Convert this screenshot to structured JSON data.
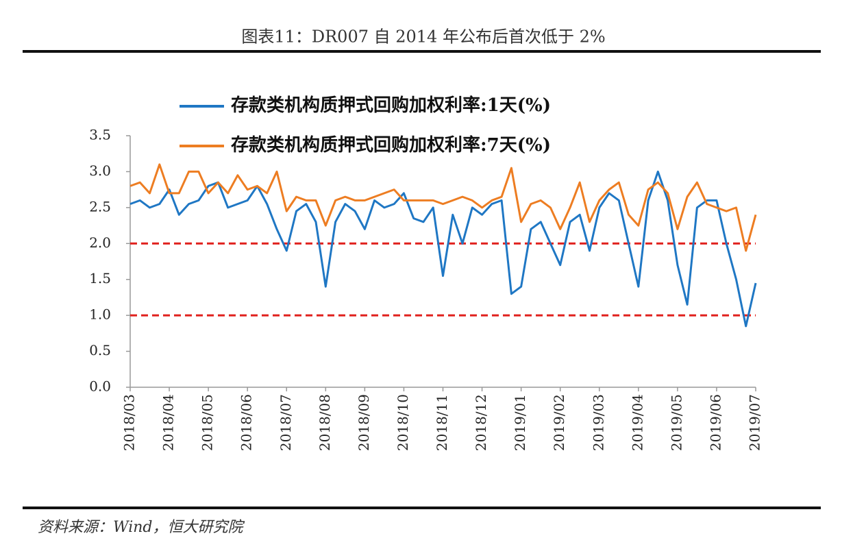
{
  "chart_data": {
    "type": "line",
    "title": "图表11：DR007 自 2014 年公布后首次低于 2%",
    "source": "资料来源：Wind，恒大研究院",
    "categories": [
      "2018/03",
      null,
      null,
      null,
      "2018/04",
      null,
      null,
      null,
      "2018/05",
      null,
      null,
      null,
      "2018/06",
      null,
      null,
      null,
      "2018/07",
      null,
      null,
      null,
      "2018/08",
      null,
      null,
      null,
      "2018/09",
      null,
      null,
      null,
      "2018/10",
      null,
      null,
      null,
      "2018/11",
      null,
      null,
      null,
      "2018/12",
      null,
      null,
      null,
      "2019/01",
      null,
      null,
      null,
      "2019/02",
      null,
      null,
      null,
      "2019/03",
      null,
      null,
      null,
      "2019/04",
      null,
      null,
      null,
      "2019/05",
      null,
      null,
      null,
      "2019/06",
      null,
      null,
      null,
      "2019/07"
    ],
    "series": [
      {
        "name": "存款类机构质押式回购加权利率:1天(%)",
        "color": "#1f77c4",
        "values": [
          2.55,
          2.6,
          2.5,
          2.55,
          2.75,
          2.4,
          2.55,
          2.6,
          2.8,
          2.85,
          2.5,
          2.55,
          2.6,
          2.8,
          2.55,
          2.2,
          1.9,
          2.45,
          2.55,
          2.3,
          1.4,
          2.3,
          2.55,
          2.45,
          2.2,
          2.6,
          2.5,
          2.55,
          2.7,
          2.35,
          2.3,
          2.5,
          1.55,
          2.4,
          2.0,
          2.5,
          2.4,
          2.55,
          2.6,
          1.3,
          1.4,
          2.2,
          2.3,
          2.0,
          1.7,
          2.3,
          2.4,
          1.9,
          2.5,
          2.7,
          2.6,
          2.0,
          1.4,
          2.6,
          3.0,
          2.6,
          1.7,
          1.15,
          2.5,
          2.6,
          2.6,
          2.0,
          1.5,
          0.85,
          1.45
        ]
      },
      {
        "name": "存款类机构质押式回购加权利率:7天(%)",
        "color": "#ed7d22",
        "values": [
          2.8,
          2.85,
          2.7,
          3.1,
          2.7,
          2.7,
          3.0,
          3.0,
          2.7,
          2.85,
          2.7,
          2.95,
          2.75,
          2.8,
          2.7,
          3.0,
          2.45,
          2.65,
          2.6,
          2.6,
          2.25,
          2.6,
          2.65,
          2.6,
          2.6,
          2.65,
          2.7,
          2.75,
          2.6,
          2.6,
          2.6,
          2.6,
          2.55,
          2.6,
          2.65,
          2.6,
          2.5,
          2.6,
          2.65,
          3.05,
          2.3,
          2.55,
          2.6,
          2.5,
          2.2,
          2.5,
          2.85,
          2.3,
          2.6,
          2.75,
          2.85,
          2.4,
          2.25,
          2.75,
          2.85,
          2.7,
          2.2,
          2.65,
          2.85,
          2.55,
          2.5,
          2.45,
          2.5,
          1.9,
          2.4
        ]
      }
    ],
    "ylim": [
      0,
      3.5
    ],
    "yticks": [
      {
        "value": 0,
        "label": "0.0"
      },
      0.5,
      {
        "value": 1,
        "label": "1.0"
      },
      1.5,
      {
        "value": 2,
        "label": "2.0"
      },
      2.5,
      {
        "value": 3,
        "label": "3.0"
      },
      3.5
    ],
    "reference_lines": [
      {
        "value": 2,
        "color": "#e0201c"
      },
      {
        "value": 1,
        "color": "#e0201c"
      }
    ],
    "legend": "top-left"
  }
}
